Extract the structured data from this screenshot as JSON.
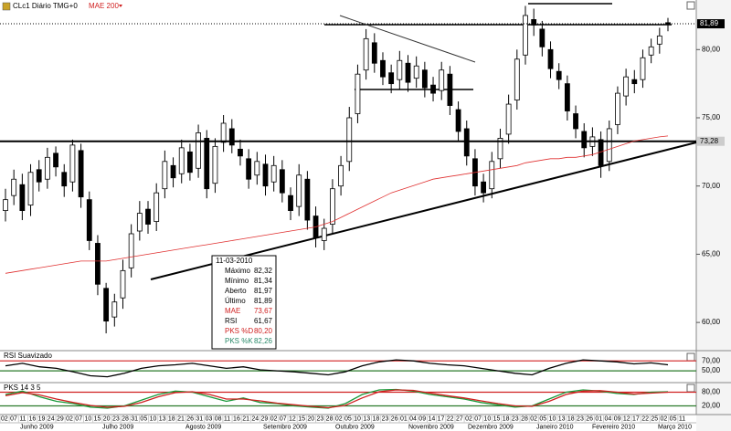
{
  "chart_data": {
    "type": "candlestick",
    "title": "CLc1 Diário TMG+0",
    "open": [
      68.2,
      69.3,
      70.1,
      68.6,
      71.2,
      70.5,
      72.4,
      71.0,
      70.3,
      72.6,
      69.0,
      65.8,
      62.5,
      60.4,
      61.8,
      64.0,
      66.7,
      68.3,
      67.4,
      69.8,
      71.5,
      70.9,
      72.5,
      71.3,
      73.5,
      70.2,
      73.2,
      74.2,
      72.7,
      72.0,
      70.8,
      71.6,
      70.3,
      71.2,
      69.3,
      68.5,
      70.5,
      67.8,
      66.0,
      67.2,
      70.0,
      71.8,
      75.3,
      78.5,
      80.5,
      79.2,
      78.3,
      77.8,
      79.0,
      77.9,
      78.5,
      77.4,
      77.0,
      78.2,
      75.6,
      74.2,
      72.0,
      70.3,
      69.8,
      72.0,
      73.8,
      76.3,
      79.6,
      82.2,
      81.5,
      80.0,
      78.4,
      77.5,
      75.3,
      74.0,
      72.9,
      73.4,
      71.8,
      74.5,
      76.6,
      77.8,
      77.8,
      79.6,
      80.4,
      81.97
    ],
    "high": [
      69.8,
      71.2,
      70.9,
      71.6,
      71.9,
      72.8,
      72.9,
      71.6,
      73.4,
      73.1,
      69.6,
      66.4,
      62.9,
      62.1,
      64.6,
      67.2,
      68.9,
      68.9,
      70.2,
      72.6,
      72.1,
      73.4,
      73.1,
      74.5,
      74.1,
      73.5,
      75.2,
      74.9,
      73.4,
      72.7,
      72.5,
      72.3,
      72.2,
      71.9,
      69.9,
      71.6,
      71.1,
      68.5,
      67.6,
      70.5,
      72.2,
      75.8,
      78.9,
      81.5,
      81.2,
      79.8,
      78.9,
      79.9,
      79.6,
      79.5,
      79.1,
      78.0,
      79.1,
      78.8,
      76.2,
      74.8,
      72.7,
      70.9,
      72.5,
      74.2,
      76.7,
      80.0,
      83.2,
      83.0,
      82.1,
      80.6,
      79.0,
      78.1,
      75.9,
      74.6,
      74.3,
      74.0,
      74.8,
      77.3,
      78.6,
      78.5,
      80.0,
      80.8,
      81.6,
      82.32
    ],
    "low": [
      67.4,
      68.6,
      67.5,
      67.8,
      69.6,
      69.8,
      70.7,
      69.2,
      69.6,
      68.4,
      65.3,
      62.0,
      59.2,
      59.7,
      61.0,
      63.3,
      66.0,
      66.5,
      66.7,
      69.1,
      69.9,
      70.2,
      70.4,
      70.6,
      69.1,
      69.5,
      72.5,
      72.4,
      71.5,
      69.8,
      70.1,
      69.3,
      69.6,
      68.8,
      67.5,
      67.8,
      66.8,
      65.5,
      65.3,
      66.5,
      69.3,
      71.1,
      74.6,
      77.8,
      78.3,
      77.4,
      76.8,
      77.1,
      76.9,
      77.2,
      76.5,
      76.2,
      76.3,
      75.2,
      73.3,
      71.5,
      69.3,
      68.8,
      69.1,
      71.3,
      73.1,
      75.6,
      78.9,
      81.0,
      79.5,
      77.9,
      77.1,
      74.8,
      73.5,
      72.1,
      72.2,
      70.6,
      71.1,
      73.8,
      75.9,
      76.8,
      77.2,
      79.0,
      79.7,
      81.34
    ],
    "close": [
      69.0,
      70.5,
      68.2,
      71.0,
      70.3,
      72.1,
      71.4,
      70.0,
      73.0,
      69.2,
      66.0,
      62.8,
      60.1,
      61.5,
      63.8,
      66.5,
      68.0,
      67.2,
      69.5,
      71.8,
      70.6,
      72.8,
      71.0,
      73.9,
      69.8,
      72.9,
      74.6,
      73.0,
      72.2,
      70.5,
      71.8,
      70.0,
      71.5,
      69.5,
      68.2,
      70.8,
      67.5,
      66.2,
      66.9,
      69.8,
      71.5,
      75.0,
      78.2,
      80.8,
      79.0,
      78.0,
      77.5,
      79.2,
      77.6,
      78.8,
      77.2,
      76.8,
      78.5,
      75.9,
      74.0,
      72.2,
      70.0,
      69.5,
      71.8,
      73.5,
      76.0,
      79.3,
      82.5,
      81.8,
      80.2,
      78.6,
      77.8,
      75.5,
      74.2,
      72.8,
      73.6,
      71.5,
      74.2,
      76.8,
      78.0,
      77.5,
      79.4,
      80.2,
      81.0,
      81.89
    ],
    "ma": {
      "name": "MAE 200",
      "color": "#e03030",
      "values": [
        63.6,
        63.7,
        63.8,
        63.9,
        64.0,
        64.1,
        64.2,
        64.3,
        64.4,
        64.5,
        64.5,
        64.5,
        64.5,
        64.6,
        64.7,
        64.8,
        64.9,
        65.0,
        65.1,
        65.2,
        65.3,
        65.4,
        65.5,
        65.6,
        65.7,
        65.8,
        65.9,
        66.0,
        66.1,
        66.2,
        66.3,
        66.4,
        66.5,
        66.6,
        66.7,
        66.8,
        66.9,
        67.0,
        67.2,
        67.4,
        67.7,
        68.0,
        68.3,
        68.6,
        68.9,
        69.2,
        69.5,
        69.7,
        69.9,
        70.1,
        70.3,
        70.5,
        70.6,
        70.7,
        70.8,
        70.9,
        71.0,
        71.1,
        71.2,
        71.3,
        71.4,
        71.5,
        71.7,
        71.8,
        71.9,
        72.0,
        72.0,
        72.1,
        72.1,
        72.2,
        72.3,
        72.5,
        72.7,
        72.9,
        73.1,
        73.3,
        73.4,
        73.5,
        73.6,
        73.67
      ]
    },
    "ylim": [
      58,
      83.5
    ],
    "yticks": [
      {
        "value": 60,
        "label": "60,00"
      },
      {
        "value": 65,
        "label": "65,00"
      },
      {
        "value": 70,
        "label": "70,00"
      },
      {
        "value": 75,
        "label": "75,00"
      },
      {
        "value": 80,
        "label": "80,00"
      }
    ],
    "price_markers": [
      {
        "value": 81.89,
        "label": "81,89"
      },
      {
        "value": 73.28,
        "label": "73,28"
      }
    ],
    "info_box": {
      "date": "11-03-2010",
      "rows": [
        {
          "label": "Máximo",
          "value": "82,32",
          "color": "#000000"
        },
        {
          "label": "Mínimo",
          "value": "81,34",
          "color": "#000000"
        },
        {
          "label": "Aberto",
          "value": "81,97",
          "color": "#000000"
        },
        {
          "label": "Último",
          "value": "81,89",
          "color": "#000000"
        },
        {
          "label": "MAE",
          "value": "73,67",
          "color": "#d02020"
        },
        {
          "label": "RSI",
          "value": "61,67",
          "color": "#000000"
        },
        {
          "label": "PKS %D",
          "value": "80,20",
          "color": "#d02020"
        },
        {
          "label": "PKS %K",
          "value": "82,26",
          "color": "#2a8a6a"
        }
      ]
    },
    "indicators": [
      {
        "title": "RSI Suavizado",
        "ylim": [
          30,
          85
        ],
        "yticks": [
          {
            "value": 70,
            "label": "70,00",
            "color": "#d02020"
          },
          {
            "value": 50,
            "label": "50,00",
            "color": "#2a7a2a"
          }
        ],
        "series": [
          {
            "color": "#000000",
            "values": [
              60,
              65,
              58,
              55,
              48,
              40,
              38,
              45,
              55,
              60,
              62,
              65,
              60,
              55,
              58,
              52,
              50,
              48,
              45,
              42,
              48,
              60,
              68,
              72,
              70,
              65,
              62,
              60,
              55,
              50,
              45,
              42,
              55,
              65,
              72,
              70,
              68,
              64,
              66,
              62
            ]
          }
        ]
      },
      {
        "title": "PKS 14 3 5",
        "ylim": [
          -10,
          110
        ],
        "yticks": [
          {
            "value": 80,
            "label": "80,00",
            "color": "#d02020"
          },
          {
            "value": 20,
            "label": "20,00",
            "color": "#2a7a2a"
          }
        ],
        "series": [
          {
            "color": "#1a9a3a",
            "values": [
              70,
              85,
              60,
              40,
              30,
              15,
              10,
              20,
              45,
              70,
              85,
              80,
              60,
              40,
              55,
              35,
              30,
              20,
              15,
              10,
              30,
              70,
              90,
              92,
              85,
              70,
              60,
              50,
              35,
              25,
              15,
              20,
              50,
              80,
              90,
              85,
              75,
              70,
              80,
              82
            ]
          },
          {
            "color": "#d02020",
            "values": [
              65,
              78,
              68,
              50,
              35,
              22,
              14,
              18,
              35,
              60,
              78,
              82,
              70,
              50,
              50,
              42,
              32,
              25,
              18,
              12,
              22,
              55,
              82,
              90,
              88,
              76,
              65,
              55,
              42,
              30,
              20,
              18,
              40,
              70,
              85,
              87,
              80,
              72,
              76,
              80
            ]
          }
        ]
      }
    ],
    "x_day_labels": [
      "02",
      "07",
      "11",
      "16",
      "19",
      "24",
      "29",
      "02",
      "07",
      "10",
      "15",
      "20",
      "23",
      "28",
      "31",
      "05",
      "10",
      "13",
      "18",
      "21",
      "26",
      "31",
      "03",
      "08",
      "11",
      "16",
      "21",
      "24",
      "29",
      "02",
      "07",
      "12",
      "15",
      "20",
      "23",
      "28",
      "02",
      "05",
      "10",
      "13",
      "18",
      "23",
      "26",
      "01",
      "04",
      "09",
      "14",
      "17",
      "22",
      "27",
      "02",
      "07",
      "10",
      "15",
      "18",
      "23",
      "28",
      "02",
      "05",
      "10",
      "13",
      "18",
      "23",
      "26",
      "01",
      "04",
      "09",
      "12",
      "17",
      "22",
      "25",
      "02",
      "05",
      "11"
    ],
    "x_month_labels": [
      "Junho 2009",
      "Julho 2009",
      "Agosto 2009",
      "Setembro 2009",
      "Outubro 2009",
      "Novembro 2009",
      "Dezembro 2009",
      "Janeiro 2010",
      "Fevereiro 2010",
      "Março 2010"
    ]
  }
}
